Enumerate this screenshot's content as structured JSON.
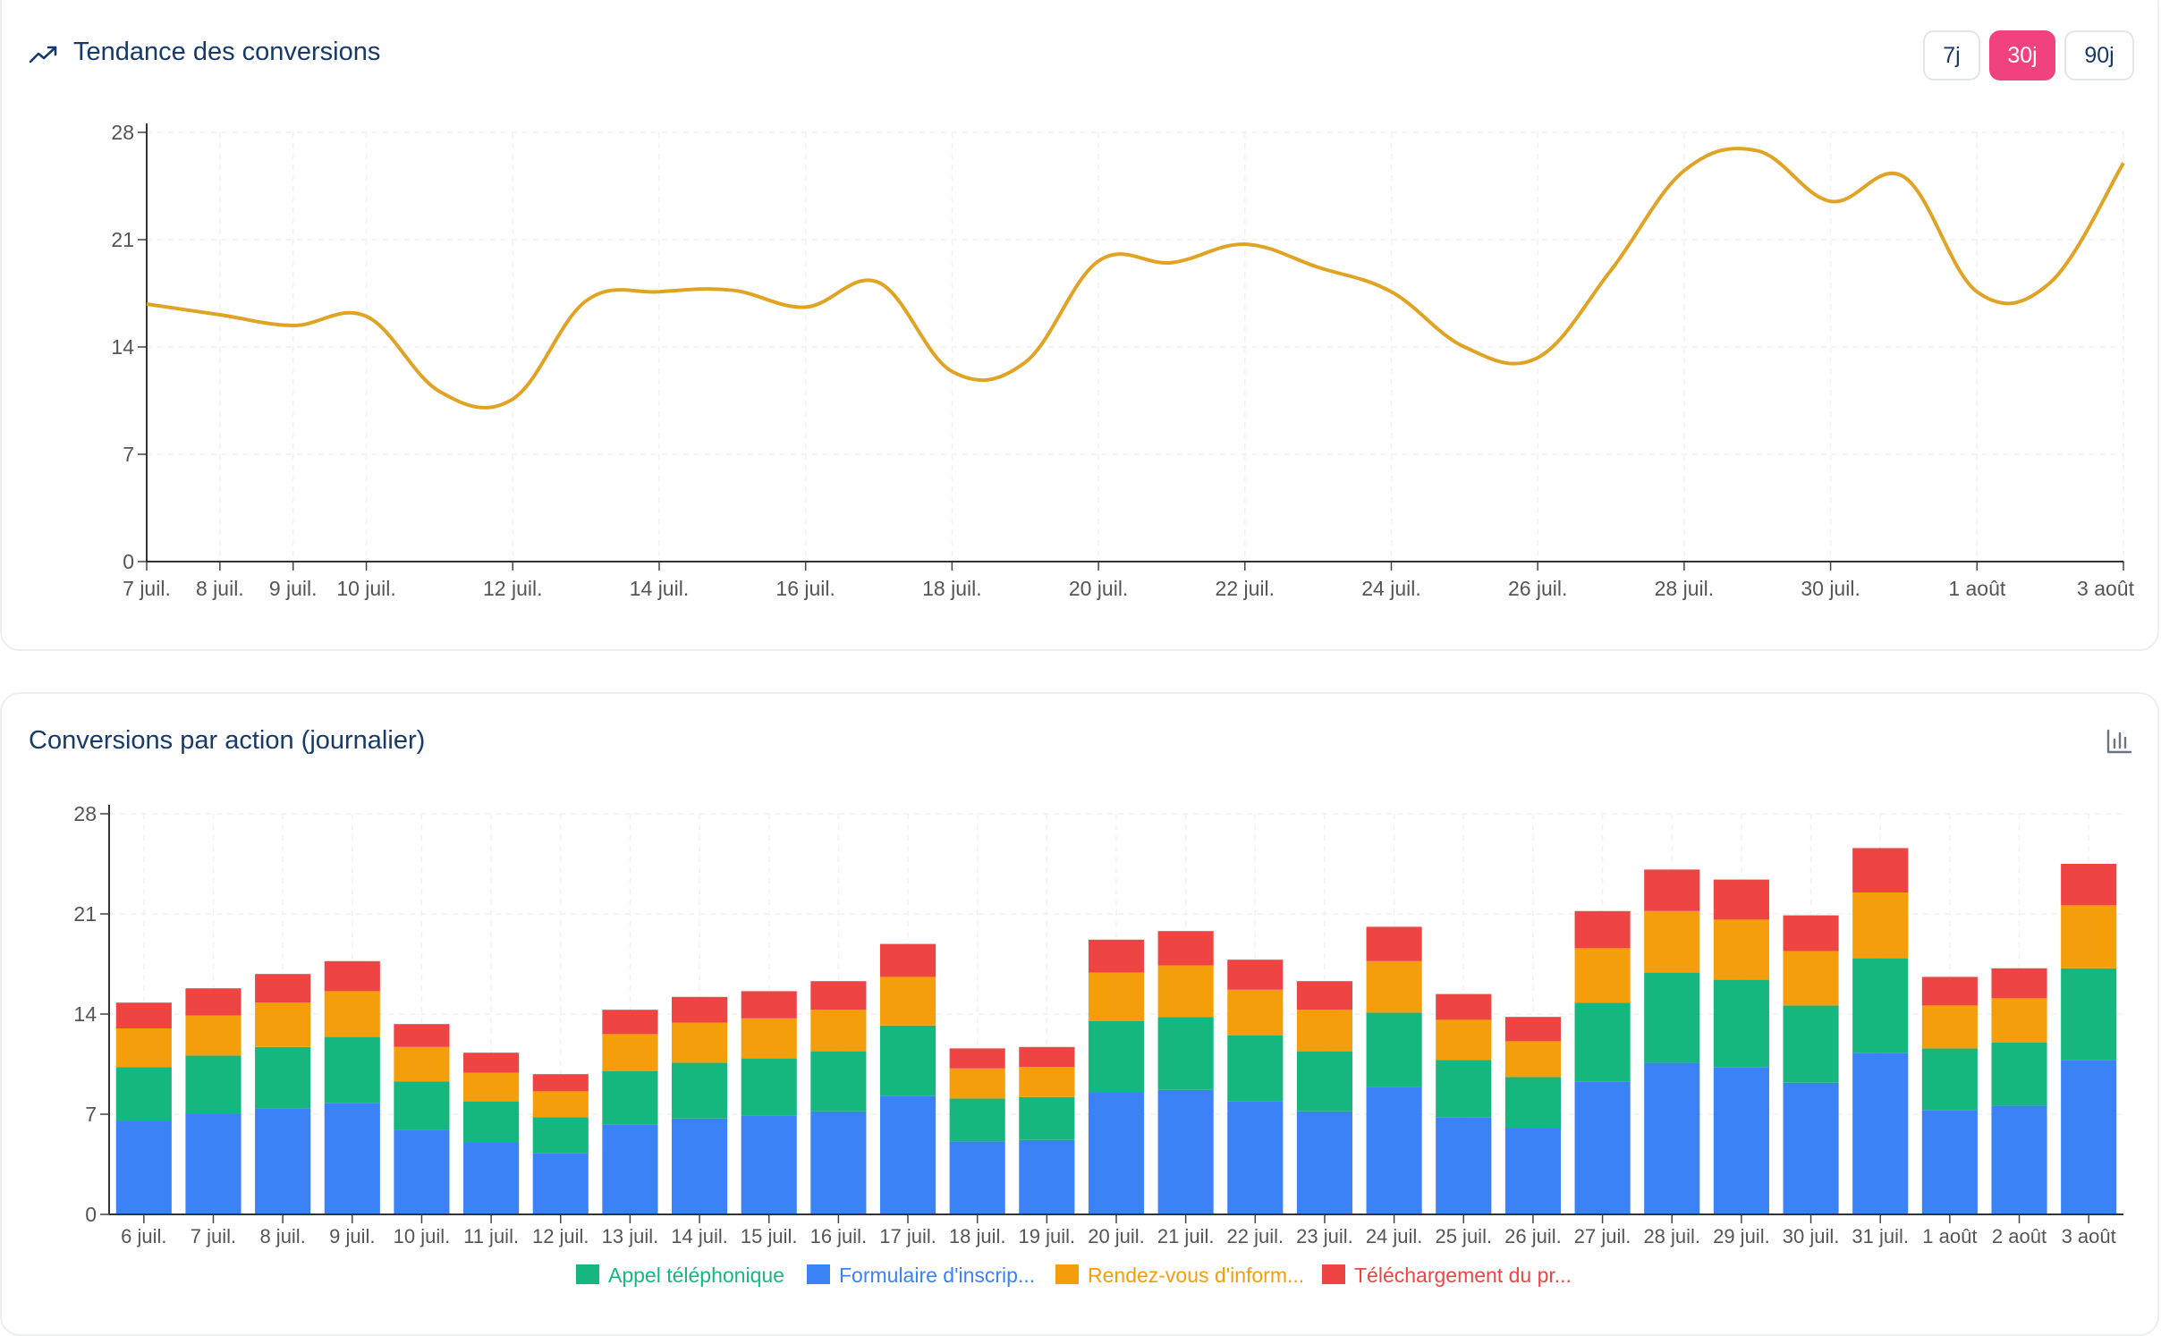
{
  "colors": {
    "trend_line": "#e0a323",
    "title": "#173a6b",
    "active_button": "#f0427f",
    "appel": "#16b77f",
    "formulaire": "#3b82f6",
    "rendezvous": "#f59e0b",
    "telechargement": "#ef4444"
  },
  "trend_card": {
    "icon": "trending-up-icon",
    "title": "Tendance des conversions",
    "range_buttons": [
      "7j",
      "30j",
      "90j"
    ],
    "active_range": "30j"
  },
  "bars_card": {
    "title": "Conversions par action (journalier)",
    "icon": "bar-chart-icon"
  },
  "chart_data": [
    {
      "type": "line",
      "x": [
        "7 juil.",
        "8 juil.",
        "9 juil.",
        "10 juil.",
        "11 juil.",
        "12 juil.",
        "13 juil.",
        "14 juil.",
        "15 juil.",
        "16 juil.",
        "17 juil.",
        "18 juil.",
        "19 juil.",
        "20 juil.",
        "21 juil.",
        "22 juil.",
        "23 juil.",
        "24 juil.",
        "25 juil.",
        "26 juil.",
        "27 juil.",
        "28 juil.",
        "29 juil.",
        "30 juil.",
        "31 juil.",
        "1 août",
        "2 août",
        "3 août"
      ],
      "x_tick_labels": [
        "7 juil.",
        "8 juil.",
        "9 juil.",
        "10 juil.",
        "12 juil.",
        "14 juil.",
        "16 juil.",
        "18 juil.",
        "20 juil.",
        "22 juil.",
        "24 juil.",
        "26 juil.",
        "28 juil.",
        "30 juil.",
        "1 août",
        "3 août"
      ],
      "y_ticks": [
        0,
        7,
        14,
        21,
        28
      ],
      "ylim": [
        0,
        28
      ],
      "series": [
        {
          "values": [
            16.8,
            16.1,
            15.4,
            16.0,
            11.1,
            10.6,
            17.0,
            17.6,
            17.7,
            16.6,
            18.2,
            12.4,
            13.0,
            19.6,
            19.5,
            20.7,
            19.2,
            17.6,
            14.0,
            13.3,
            19.0,
            25.5,
            26.8,
            23.5,
            25.1,
            17.6,
            18.2,
            26.0
          ]
        }
      ],
      "grid": true
    },
    {
      "type": "bar",
      "stacked": true,
      "categories": [
        "6 juil.",
        "7 juil.",
        "8 juil.",
        "9 juil.",
        "10 juil.",
        "11 juil.",
        "12 juil.",
        "13 juil.",
        "14 juil.",
        "15 juil.",
        "16 juil.",
        "17 juil.",
        "18 juil.",
        "19 juil.",
        "20 juil.",
        "21 juil.",
        "22 juil.",
        "23 juil.",
        "24 juil.",
        "25 juil.",
        "26 juil.",
        "27 juil.",
        "28 juil.",
        "29 juil.",
        "30 juil.",
        "31 juil.",
        "1 août",
        "2 août",
        "3 août"
      ],
      "y_ticks": [
        0,
        7,
        14,
        21,
        28
      ],
      "ylim": [
        0,
        28
      ],
      "legend_position": "bottom-center",
      "grid": true,
      "series": [
        {
          "name": "Formulaire d'inscrip...",
          "color_key": "formulaire",
          "values": [
            6.5,
            7.0,
            7.4,
            7.8,
            5.9,
            5.0,
            4.3,
            6.3,
            6.7,
            6.9,
            7.2,
            8.3,
            5.1,
            5.2,
            8.5,
            8.7,
            7.9,
            7.2,
            8.9,
            6.8,
            6.0,
            9.3,
            10.6,
            10.3,
            9.2,
            11.3,
            7.3,
            7.6,
            10.8
          ]
        },
        {
          "name": "Appel téléphonique",
          "color_key": "appel",
          "values": [
            3.8,
            4.1,
            4.3,
            4.6,
            3.4,
            2.9,
            2.5,
            3.7,
            3.9,
            4.0,
            4.2,
            4.9,
            3.0,
            3.0,
            5.0,
            5.1,
            4.6,
            4.2,
            5.2,
            4.0,
            3.6,
            5.5,
            6.3,
            6.1,
            5.4,
            6.6,
            4.3,
            4.4,
            6.4
          ]
        },
        {
          "name": "Rendez-vous d'inform...",
          "color_key": "rendezvous",
          "values": [
            2.7,
            2.8,
            3.1,
            3.2,
            2.4,
            2.0,
            1.8,
            2.6,
            2.8,
            2.8,
            2.9,
            3.4,
            2.1,
            2.1,
            3.4,
            3.6,
            3.2,
            2.9,
            3.6,
            2.8,
            2.5,
            3.8,
            4.3,
            4.2,
            3.8,
            4.6,
            3.0,
            3.1,
            4.4
          ]
        },
        {
          "name": "Téléchargement du pr...",
          "color_key": "telechargement",
          "values": [
            1.8,
            1.9,
            2.0,
            2.1,
            1.6,
            1.4,
            1.2,
            1.7,
            1.8,
            1.9,
            2.0,
            2.3,
            1.4,
            1.4,
            2.3,
            2.4,
            2.1,
            2.0,
            2.4,
            1.8,
            1.7,
            2.6,
            2.9,
            2.8,
            2.5,
            3.1,
            2.0,
            2.1,
            2.9
          ]
        }
      ]
    }
  ]
}
